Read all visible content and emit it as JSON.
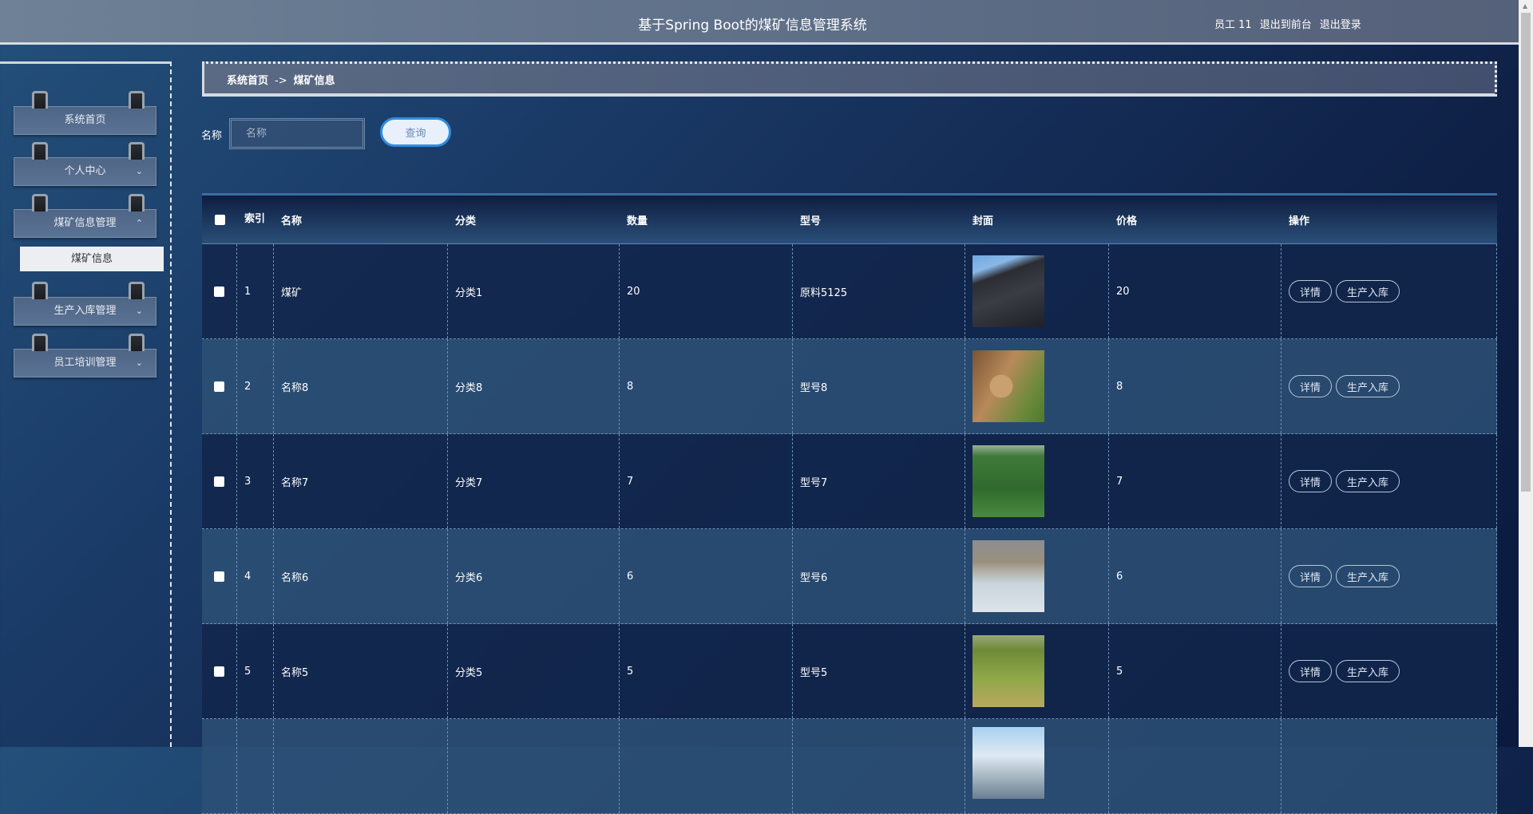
{
  "header": {
    "title": "基于Spring Boot的煤矿信息管理系统",
    "user": "员工 11",
    "to_front": "退出到前台",
    "logout": "退出登录"
  },
  "sidebar": {
    "items": [
      {
        "label": "系统首页",
        "chevron": ""
      },
      {
        "label": "个人中心",
        "chevron": "⌄"
      },
      {
        "label": "煤矿信息管理",
        "chevron": "⌃"
      },
      {
        "label": "生产入库管理",
        "chevron": "⌄"
      },
      {
        "label": "员工培训管理",
        "chevron": "⌄"
      }
    ],
    "submenu": "煤矿信息"
  },
  "breadcrumb": {
    "home": "系统首页",
    "sep": "->",
    "current": "煤矿信息"
  },
  "search": {
    "label": "名称",
    "placeholder": "名称",
    "button": "查询"
  },
  "table": {
    "headers": [
      "",
      "索引",
      "名称",
      "分类",
      "数量",
      "型号",
      "封面",
      "价格",
      "操作"
    ],
    "actions": {
      "detail": "详情",
      "stock": "生产入库"
    },
    "rows": [
      {
        "index": "1",
        "name": "煤矿",
        "category": "分类1",
        "qty": "20",
        "model": "原料5125",
        "price": "20",
        "cover": "coal-pile"
      },
      {
        "index": "2",
        "name": "名称8",
        "category": "分类8",
        "qty": "8",
        "model": "型号8",
        "price": "8",
        "cover": "potatoes"
      },
      {
        "index": "3",
        "name": "名称7",
        "category": "分类7",
        "qty": "7",
        "model": "型号7",
        "price": "7",
        "cover": "green-field"
      },
      {
        "index": "4",
        "name": "名称6",
        "category": "分类6",
        "qty": "6",
        "model": "型号6",
        "price": "6",
        "cover": "site-tarp"
      },
      {
        "index": "5",
        "name": "名称5",
        "category": "分类5",
        "qty": "5",
        "model": "型号5",
        "price": "5",
        "cover": "leafy-field"
      }
    ]
  }
}
